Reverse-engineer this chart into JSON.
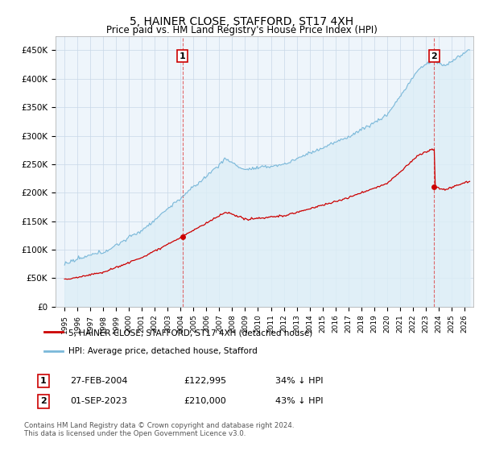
{
  "title": "5, HAINER CLOSE, STAFFORD, ST17 4XH",
  "subtitle": "Price paid vs. HM Land Registry's House Price Index (HPI)",
  "ylim": [
    0,
    475000
  ],
  "yticks": [
    0,
    50000,
    100000,
    150000,
    200000,
    250000,
    300000,
    350000,
    400000,
    450000
  ],
  "ytick_labels": [
    "£0",
    "£50K",
    "£100K",
    "£150K",
    "£200K",
    "£250K",
    "£300K",
    "£350K",
    "£400K",
    "£450K"
  ],
  "hpi_color": "#7ab8d9",
  "hpi_fill_color": "#ddeef7",
  "price_color": "#cc0000",
  "vline_color": "#dd4444",
  "annotation_box_color": "#cc0000",
  "legend_line_red": "5, HAINER CLOSE, STAFFORD, ST17 4XH (detached house)",
  "legend_line_blue": "HPI: Average price, detached house, Stafford",
  "transaction1_label": "1",
  "transaction1_date": "27-FEB-2004",
  "transaction1_price": "£122,995",
  "transaction1_hpi": "34% ↓ HPI",
  "transaction2_label": "2",
  "transaction2_date": "01-SEP-2023",
  "transaction2_price": "£210,000",
  "transaction2_hpi": "43% ↓ HPI",
  "footer": "Contains HM Land Registry data © Crown copyright and database right 2024.\nThis data is licensed under the Open Government Licence v3.0.",
  "transaction1_year": 2004.15,
  "transaction2_year": 2023.67,
  "transaction1_price_val": 122995,
  "transaction2_price_val": 210000,
  "background_color": "#ffffff",
  "plot_bg_color": "#eef5fb",
  "grid_color": "#c8d8e8"
}
